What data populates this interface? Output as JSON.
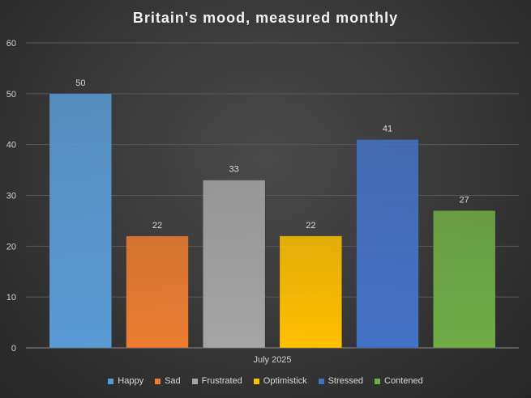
{
  "chart_data": {
    "type": "bar",
    "title": "Britain's  mood,  measured  monthly",
    "categories": [
      "July 2025"
    ],
    "series": [
      {
        "name": "Happy",
        "values": [
          50
        ],
        "color": "#5b9bd5"
      },
      {
        "name": "Sad",
        "values": [
          22
        ],
        "color": "#ed7d31"
      },
      {
        "name": "Frustrated",
        "values": [
          33
        ],
        "color": "#a5a5a5"
      },
      {
        "name": "Optimistick",
        "values": [
          22
        ],
        "color": "#ffc000"
      },
      {
        "name": "Stressed",
        "values": [
          41
        ],
        "color": "#4472c4"
      },
      {
        "name": "Contened",
        "values": [
          27
        ],
        "color": "#70ad47"
      }
    ],
    "ylim": [
      0,
      60
    ],
    "yticks": [
      0,
      10,
      20,
      30,
      40,
      50,
      60
    ],
    "grid": true,
    "legend_position": "bottom"
  }
}
